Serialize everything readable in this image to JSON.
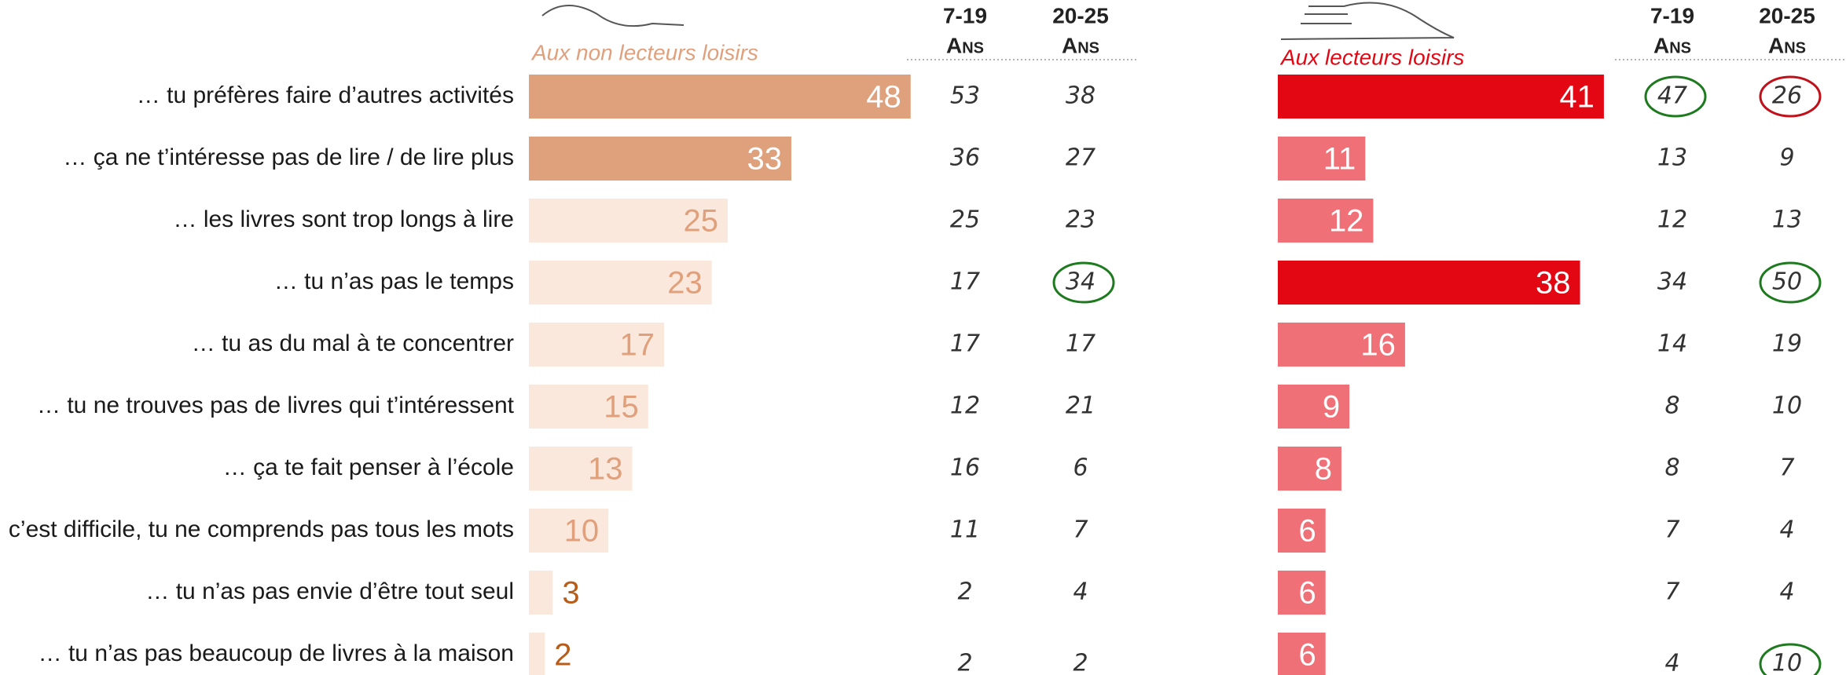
{
  "chart_data": [
    {
      "type": "bar",
      "orientation": "horizontal",
      "subtitle": "Aux non lecteurs loisirs",
      "subtitle_color": "#e0a07c",
      "categories": [
        "… tu préfères faire d’autres activités",
        "… ça ne t’intéresse pas de lire / de lire plus",
        "… les livres sont trop longs à lire",
        "… tu n’as pas le temps",
        "… tu as du mal à te concentrer",
        "… tu ne trouves pas de livres qui t’intéressent",
        "… ça te fait penser à l’école",
        "… c’est difficile, tu ne comprends pas tous les mots",
        "… tu n’as pas envie d’être tout seul",
        "… tu n’as pas beaucoup de livres à la maison"
      ],
      "values": [
        48,
        33,
        25,
        23,
        17,
        15,
        13,
        10,
        3,
        2
      ],
      "colors": [
        "#dfa07c",
        "#dfa07c",
        "#fbe8dc",
        "#fbe8dc",
        "#fbe8dc",
        "#fbe8dc",
        "#fbe8dc",
        "#fbe8dc",
        "#fbe8dc",
        "#fbe8dc"
      ],
      "label_colors": [
        "#ffffff",
        "#ffffff",
        "#e0a07c",
        "#e0a07c",
        "#e0a07c",
        "#e0a07c",
        "#e0a07c",
        "#e0a07c",
        "#b85c1a",
        "#b85c1a"
      ],
      "columns": [
        {
          "name": "7-19",
          "unit": "Ans",
          "values": [
            53,
            36,
            25,
            17,
            17,
            12,
            16,
            11,
            2,
            2
          ],
          "circles": [
            null,
            null,
            null,
            null,
            null,
            null,
            null,
            null,
            null,
            null
          ]
        },
        {
          "name": "20-25",
          "unit": "Ans",
          "values": [
            38,
            27,
            23,
            34,
            17,
            21,
            6,
            7,
            4,
            2
          ],
          "circles": [
            null,
            null,
            null,
            "#1e7a1e",
            null,
            null,
            null,
            null,
            null,
            null
          ]
        }
      ]
    },
    {
      "type": "bar",
      "orientation": "horizontal",
      "subtitle": "Aux lecteurs loisirs",
      "subtitle_color": "#e30613",
      "values": [
        41,
        11,
        12,
        38,
        16,
        9,
        8,
        6,
        6,
        6
      ],
      "colors": [
        "#e30613",
        "#f07077",
        "#f07077",
        "#e30613",
        "#f07077",
        "#f07077",
        "#f07077",
        "#f07077",
        "#f07077",
        "#f07077"
      ],
      "label_colors": [
        "#ffffff",
        "#ffffff",
        "#ffffff",
        "#ffffff",
        "#ffffff",
        "#ffffff",
        "#ffffff",
        "#ffffff",
        "#ffffff",
        "#ffffff"
      ],
      "columns": [
        {
          "name": "7-19",
          "unit": "Ans",
          "values": [
            47,
            13,
            12,
            34,
            14,
            8,
            8,
            7,
            7,
            4
          ],
          "circles": [
            "#1e7a1e",
            null,
            null,
            null,
            null,
            null,
            null,
            null,
            null,
            null
          ]
        },
        {
          "name": "20-25",
          "unit": "Ans",
          "values": [
            26,
            9,
            13,
            50,
            19,
            10,
            7,
            4,
            4,
            10
          ],
          "circles": [
            "#c0101a",
            null,
            null,
            "#1e7a1e",
            null,
            null,
            null,
            null,
            null,
            "#1e7a1e"
          ]
        }
      ]
    }
  ]
}
